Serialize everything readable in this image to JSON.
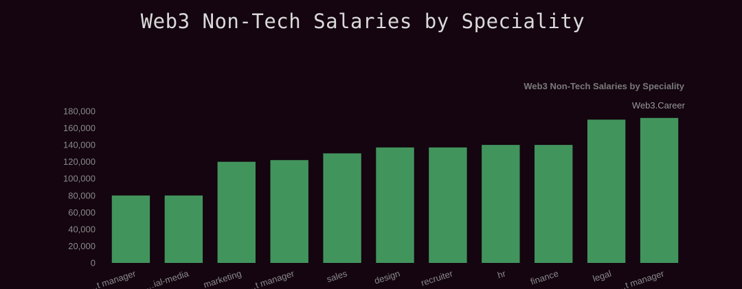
{
  "page": {
    "title": "Web3 Non-Tech Salaries by Speciality"
  },
  "chart_data": {
    "type": "bar",
    "title": "Web3 Non-Tech Salaries by Speciality",
    "subtitle": "Web3.Career",
    "xlabel": "",
    "ylabel": "",
    "ylim": [
      0,
      180000
    ],
    "yticks": [
      0,
      20000,
      40000,
      60000,
      80000,
      100000,
      120000,
      140000,
      160000,
      180000
    ],
    "ytick_labels": [
      "0",
      "20,000",
      "40,000",
      "60,000",
      "80,000",
      "100,000",
      "120,000",
      "140,000",
      "160,000",
      "180,000"
    ],
    "categories": [
      "…t manager",
      "…ial-media",
      "marketing",
      "…t manager",
      "sales",
      "design",
      "recruiter",
      "hr",
      "finance",
      "legal",
      "…t manager"
    ],
    "values": [
      80000,
      80000,
      120000,
      122000,
      130000,
      137000,
      137000,
      140000,
      140000,
      170000,
      172000
    ],
    "grid": false,
    "legend": "none",
    "colors": {
      "bar": "#42945d",
      "background": "#140510",
      "tick_text": "#8a8a8a",
      "subtitle_text": "#9a9a9a",
      "inner_title_text": "#7a7a7a"
    }
  }
}
